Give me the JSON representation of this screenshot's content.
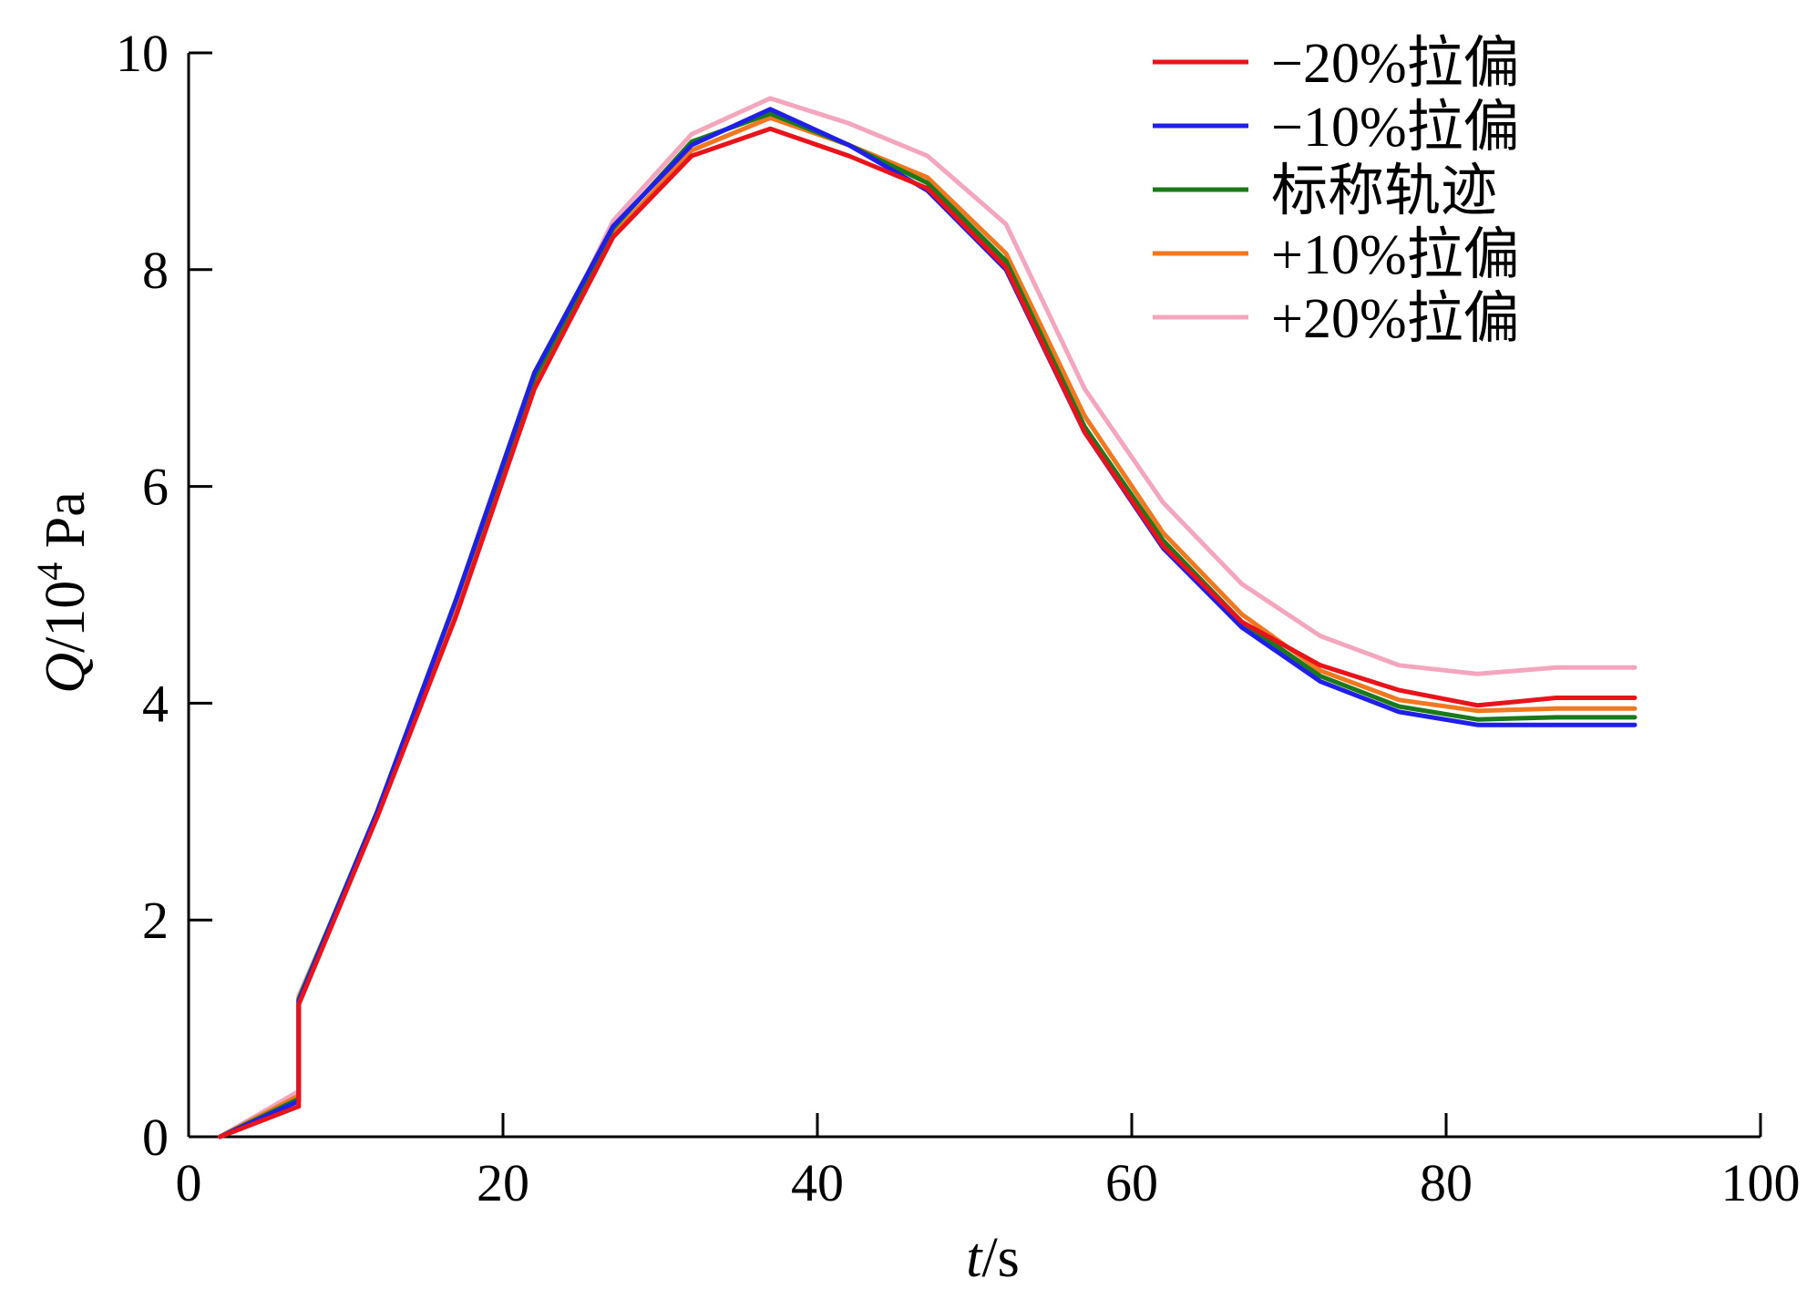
{
  "chart_data": {
    "type": "line",
    "xlabel_italic": "t",
    "xlabel_unit": "/s",
    "ylabel_italic": "Q",
    "ylabel_unit": "/10",
    "ylabel_exp": "4",
    "ylabel_unit2": " Pa",
    "xlim": [
      0,
      100
    ],
    "ylim": [
      0,
      10
    ],
    "xticks": [
      "0",
      "20",
      "40",
      "60",
      "80",
      "100"
    ],
    "yticks": [
      "0",
      "2",
      "4",
      "6",
      "8",
      "10"
    ],
    "grid": false,
    "legend_position": "top-right",
    "series": [
      {
        "name": "−20%拉偏",
        "color": "#e8131b",
        "points": [
          [
            2,
            0.0
          ],
          [
            7,
            0.28
          ],
          [
            7,
            1.22
          ],
          [
            12,
            2.95
          ],
          [
            17,
            4.8
          ],
          [
            22,
            6.9
          ],
          [
            27,
            8.3
          ],
          [
            32,
            9.05
          ],
          [
            37,
            9.3
          ],
          [
            42,
            9.05
          ],
          [
            47,
            8.75
          ],
          [
            52,
            8.02
          ],
          [
            57,
            6.5
          ],
          [
            62,
            5.45
          ],
          [
            67,
            4.75
          ],
          [
            72,
            4.35
          ],
          [
            77,
            4.12
          ],
          [
            82,
            3.98
          ],
          [
            87,
            4.05
          ],
          [
            92,
            4.05
          ]
        ]
      },
      {
        "name": "−10%拉偏",
        "color": "#1f1fe8",
        "points": [
          [
            2,
            0.0
          ],
          [
            7,
            0.33
          ],
          [
            7,
            1.25
          ],
          [
            12,
            3.0
          ],
          [
            17,
            4.95
          ],
          [
            22,
            7.05
          ],
          [
            27,
            8.4
          ],
          [
            32,
            9.15
          ],
          [
            37,
            9.48
          ],
          [
            42,
            9.15
          ],
          [
            47,
            8.73
          ],
          [
            52,
            8.0
          ],
          [
            57,
            6.5
          ],
          [
            62,
            5.43
          ],
          [
            67,
            4.7
          ],
          [
            72,
            4.2
          ],
          [
            77,
            3.92
          ],
          [
            82,
            3.8
          ],
          [
            87,
            3.8
          ],
          [
            92,
            3.8
          ]
        ]
      },
      {
        "name": "标称轨迹",
        "color": "#1a7a1a",
        "points": [
          [
            2,
            0.0
          ],
          [
            7,
            0.35
          ],
          [
            7,
            1.27
          ],
          [
            12,
            3.0
          ],
          [
            17,
            4.95
          ],
          [
            22,
            7.0
          ],
          [
            27,
            8.38
          ],
          [
            32,
            9.18
          ],
          [
            37,
            9.44
          ],
          [
            42,
            9.15
          ],
          [
            47,
            8.8
          ],
          [
            52,
            8.08
          ],
          [
            57,
            6.55
          ],
          [
            62,
            5.5
          ],
          [
            67,
            4.75
          ],
          [
            72,
            4.25
          ],
          [
            77,
            3.97
          ],
          [
            82,
            3.85
          ],
          [
            87,
            3.87
          ],
          [
            92,
            3.87
          ]
        ]
      },
      {
        "name": "+10%拉偏",
        "color": "#f07820",
        "points": [
          [
            2,
            0.0
          ],
          [
            7,
            0.38
          ],
          [
            7,
            1.27
          ],
          [
            12,
            2.98
          ],
          [
            17,
            4.9
          ],
          [
            22,
            6.95
          ],
          [
            27,
            8.32
          ],
          [
            32,
            9.1
          ],
          [
            37,
            9.4
          ],
          [
            42,
            9.15
          ],
          [
            47,
            8.85
          ],
          [
            52,
            8.15
          ],
          [
            57,
            6.65
          ],
          [
            62,
            5.57
          ],
          [
            67,
            4.82
          ],
          [
            72,
            4.3
          ],
          [
            77,
            4.03
          ],
          [
            82,
            3.93
          ],
          [
            87,
            3.95
          ],
          [
            92,
            3.95
          ]
        ]
      },
      {
        "name": "+20%拉偏",
        "color": "#f4a6be",
        "points": [
          [
            2,
            0.0
          ],
          [
            7,
            0.42
          ],
          [
            7,
            1.3
          ],
          [
            12,
            2.95
          ],
          [
            17,
            4.85
          ],
          [
            22,
            6.95
          ],
          [
            27,
            8.45
          ],
          [
            32,
            9.25
          ],
          [
            37,
            9.58
          ],
          [
            42,
            9.35
          ],
          [
            47,
            9.05
          ],
          [
            52,
            8.42
          ],
          [
            57,
            6.9
          ],
          [
            62,
            5.85
          ],
          [
            67,
            5.1
          ],
          [
            72,
            4.62
          ],
          [
            77,
            4.35
          ],
          [
            82,
            4.27
          ],
          [
            87,
            4.33
          ],
          [
            92,
            4.33
          ]
        ]
      }
    ]
  }
}
